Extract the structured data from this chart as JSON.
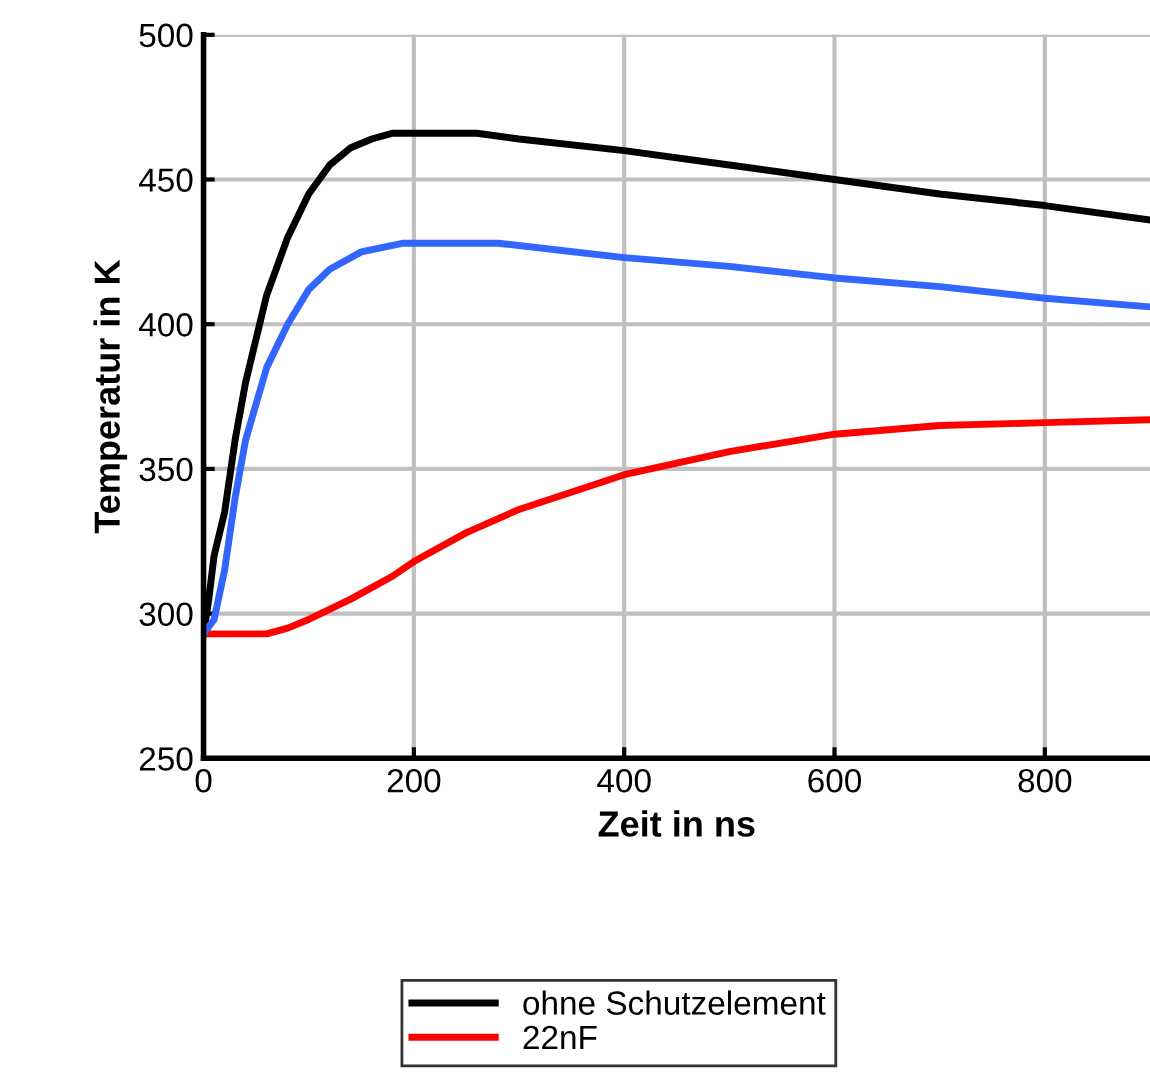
{
  "chart_data": {
    "type": "line",
    "xlabel": "Zeit in ns",
    "ylabel": "Temperatur in K",
    "xlim": [
      0,
      900
    ],
    "ylim": [
      250,
      500
    ],
    "xticks": [
      0,
      200,
      400,
      600,
      800
    ],
    "yticks": [
      250,
      300,
      350,
      400,
      450,
      500
    ],
    "grid": true,
    "legend": "bottom",
    "line_style": "solid",
    "marker": "none",
    "series": [
      {
        "name": "ohne Schutzelement",
        "color": "#000000",
        "x": [
          0,
          5,
          10,
          20,
          30,
          40,
          50,
          60,
          80,
          100,
          120,
          140,
          160,
          180,
          260,
          300,
          400,
          500,
          600,
          700,
          800,
          900
        ],
        "values": [
          293,
          305,
          320,
          335,
          360,
          380,
          395,
          410,
          430,
          445,
          455,
          461,
          464,
          466,
          466,
          464,
          460,
          455,
          450,
          445,
          441,
          436
        ]
      },
      {
        "name": "22nF",
        "color": "#ff0000",
        "x": [
          0,
          60,
          80,
          100,
          140,
          180,
          200,
          250,
          300,
          400,
          500,
          600,
          700,
          800,
          900
        ],
        "values": [
          293,
          293,
          295,
          298,
          305,
          313,
          318,
          328,
          336,
          348,
          356,
          362,
          365,
          366,
          367
        ]
      },
      {
        "color": "#3366ff",
        "x": [
          0,
          10,
          20,
          30,
          40,
          60,
          80,
          100,
          120,
          150,
          190,
          280,
          400,
          500,
          600,
          700,
          800,
          900
        ],
        "values": [
          293,
          298,
          315,
          340,
          360,
          385,
          400,
          412,
          419,
          425,
          428,
          428,
          423,
          420,
          416,
          413,
          409,
          406
        ]
      }
    ]
  }
}
